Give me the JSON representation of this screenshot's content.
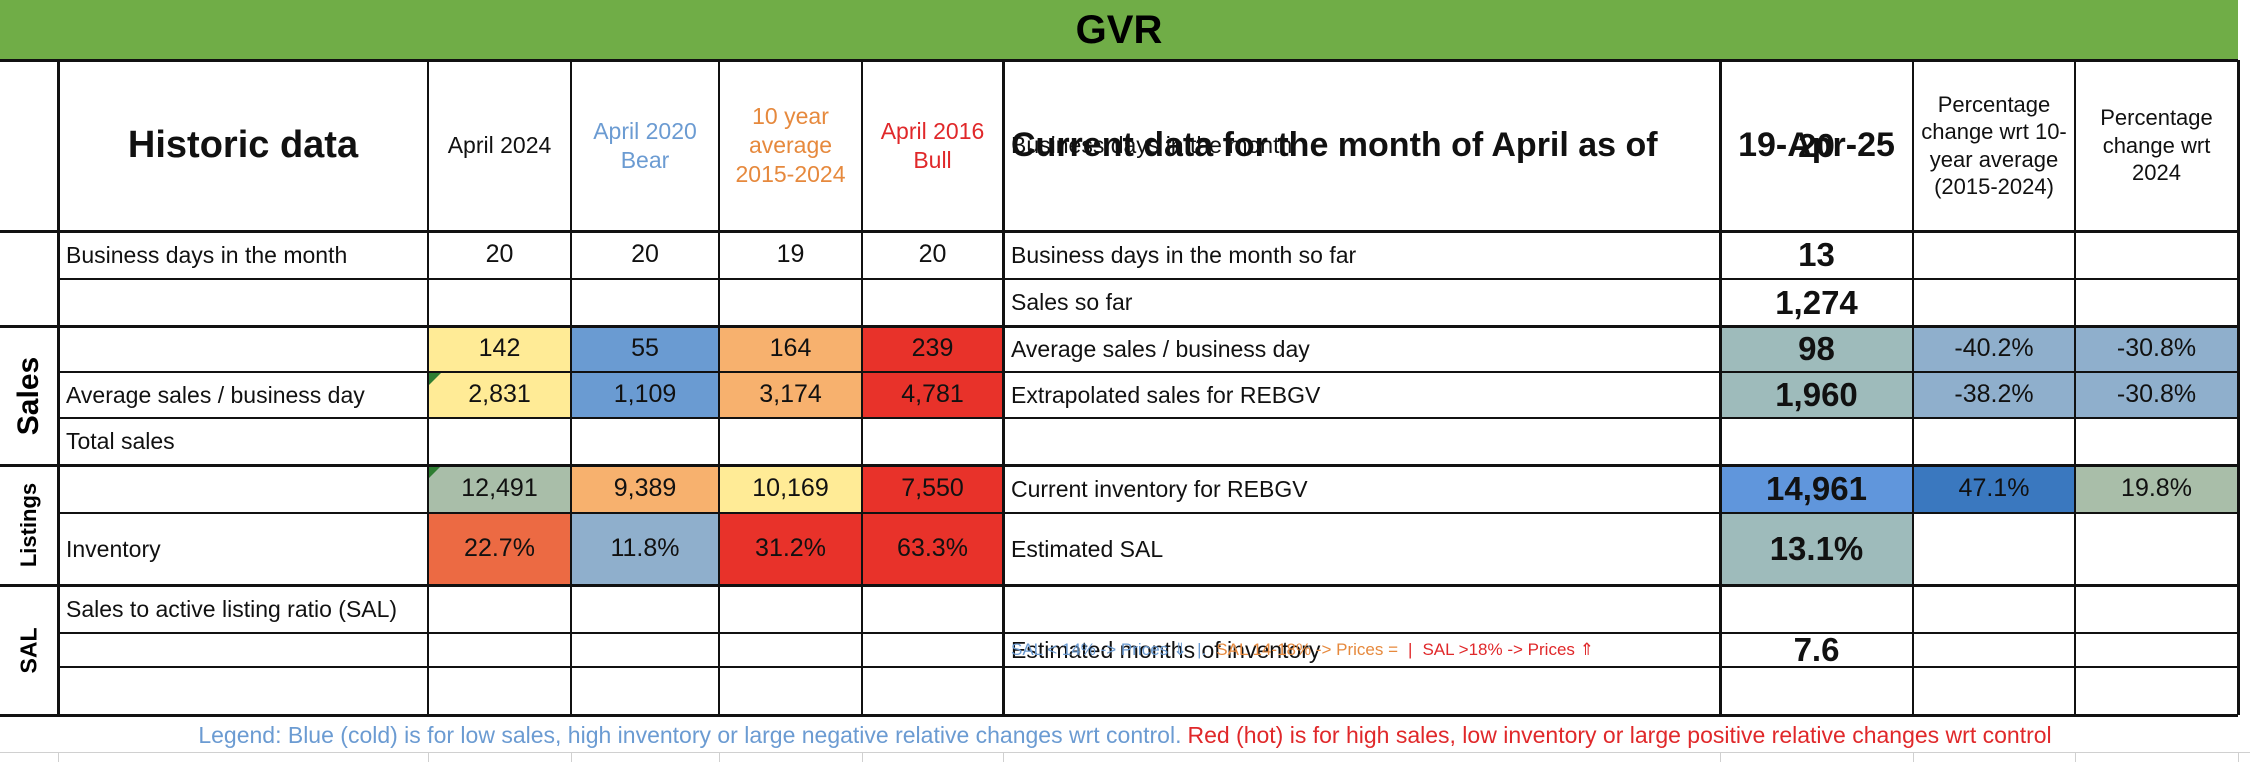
{
  "sheet_title": "GVR",
  "colors": {
    "title_band": "#70ad47",
    "yellow": "#ffeb96",
    "blue": "#6a9bd2",
    "orange": "#f7b16e",
    "red": "#e8322a",
    "red_orange": "#ec6a43",
    "gray_green": "#a9bea9",
    "steel_blue": "#8fafcc",
    "teal_gray": "#9ebbbb",
    "bright_blue": "#6096dc",
    "dark_blue": "#3a78bf",
    "label_blue": "#6b9bd2",
    "label_orange": "#e6893d",
    "label_red": "#e0282a"
  },
  "headers": {
    "historic": "Historic data",
    "col_apr2024": "April 2024",
    "col_apr2020": "April 2020 Bear",
    "col_10yr": "10 year average 2015-2024",
    "col_apr2016": "April 2016 Bull",
    "current": "Current data for the month of April as of",
    "date": "19-Apr-25",
    "pct_10yr": "Percentage change wrt 10-year average (2015-2024)",
    "pct_2024": "Percentage change wrt 2024"
  },
  "groups": {
    "sales": "Sales",
    "listings": "Listings",
    "sal": "SAL"
  },
  "historic_rows": {
    "business_days": {
      "label": "Business days in the month",
      "apr2024": "20",
      "apr2020": "20",
      "avg10": "19",
      "apr2016": "20"
    },
    "avg_sales": {
      "label": "Average sales /  business day",
      "apr2024": "142",
      "apr2020": "55",
      "avg10": "164",
      "apr2016": "239"
    },
    "total_sales": {
      "label": "Total sales",
      "apr2024": "2,831",
      "apr2020": "1,109",
      "avg10": "3,174",
      "apr2016": "4,781"
    },
    "inventory": {
      "label": "Inventory",
      "apr2024": "12,491",
      "apr2020": "9,389",
      "avg10": "10,169",
      "apr2016": "7,550"
    },
    "sal": {
      "label": "Sales to active listing ratio (SAL)",
      "apr2024": "22.7%",
      "apr2020": "11.8%",
      "avg10": "31.2%",
      "apr2016": "63.3%"
    }
  },
  "current_rows": {
    "business_days": {
      "label": "Business days in the month",
      "value": "20"
    },
    "days_so_far": {
      "label": "Business days in the month so far",
      "value": "13"
    },
    "sales_so_far": {
      "label": "Sales so far",
      "value": "1,274"
    },
    "avg_sales": {
      "label": "Average sales / business day",
      "value": "98",
      "pct_10yr": "-40.2%",
      "pct_2024": "-30.8%"
    },
    "extrapolated": {
      "label": "Extrapolated sales for REBGV",
      "value": "1,960",
      "pct_10yr": "-38.2%",
      "pct_2024": "-30.8%"
    },
    "inventory": {
      "label": "Current inventory for REBGV",
      "value": "14,961",
      "pct_10yr": "47.1%",
      "pct_2024": "19.8%"
    },
    "est_sal": {
      "label": "Estimated SAL",
      "value": "13.1%"
    },
    "months_inventory": {
      "label": "Estimated months of inventory",
      "value": "7.6"
    }
  },
  "sal_key": {
    "low": "SAL < 14% -> Prices ⇓",
    "sep1": "|.",
    "mid": "SAL 14-18% -> Prices =",
    "sep2": "|",
    "high": "SAL >18% -> Prices ⇑"
  },
  "legend": {
    "blue_text": "Legend: Blue (cold) is for low sales, high inventory or large negative relative changes wrt control.",
    "red_text": "Red (hot) is for high sales, low inventory or large positive relative changes wrt control"
  }
}
